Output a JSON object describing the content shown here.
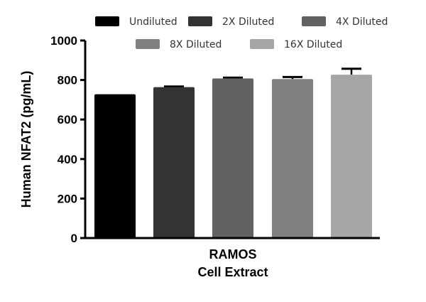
{
  "chart_data": {
    "type": "bar",
    "title": "",
    "ylabel": "Human NFAT2 (pg/mL)",
    "xlabel_lines": [
      "RAMOS",
      "Cell Extract"
    ],
    "ylim": [
      0,
      1000
    ],
    "yticks": [
      0,
      200,
      400,
      600,
      800,
      1000
    ],
    "legend_placement": "top",
    "grid": false,
    "series": [
      {
        "name": "Undiluted",
        "value": 728,
        "error": 0,
        "color": "#000000"
      },
      {
        "name": "2X Diluted",
        "value": 764,
        "error": 3,
        "color": "#333333"
      },
      {
        "name": "4X Diluted",
        "value": 808,
        "error": 4,
        "color": "#616161"
      },
      {
        "name": "8X Diluted",
        "value": 805,
        "error": 10,
        "color": "#808080"
      },
      {
        "name": "16X Diluted",
        "value": 827,
        "error": 30,
        "color": "#a6a6a8"
      }
    ]
  }
}
